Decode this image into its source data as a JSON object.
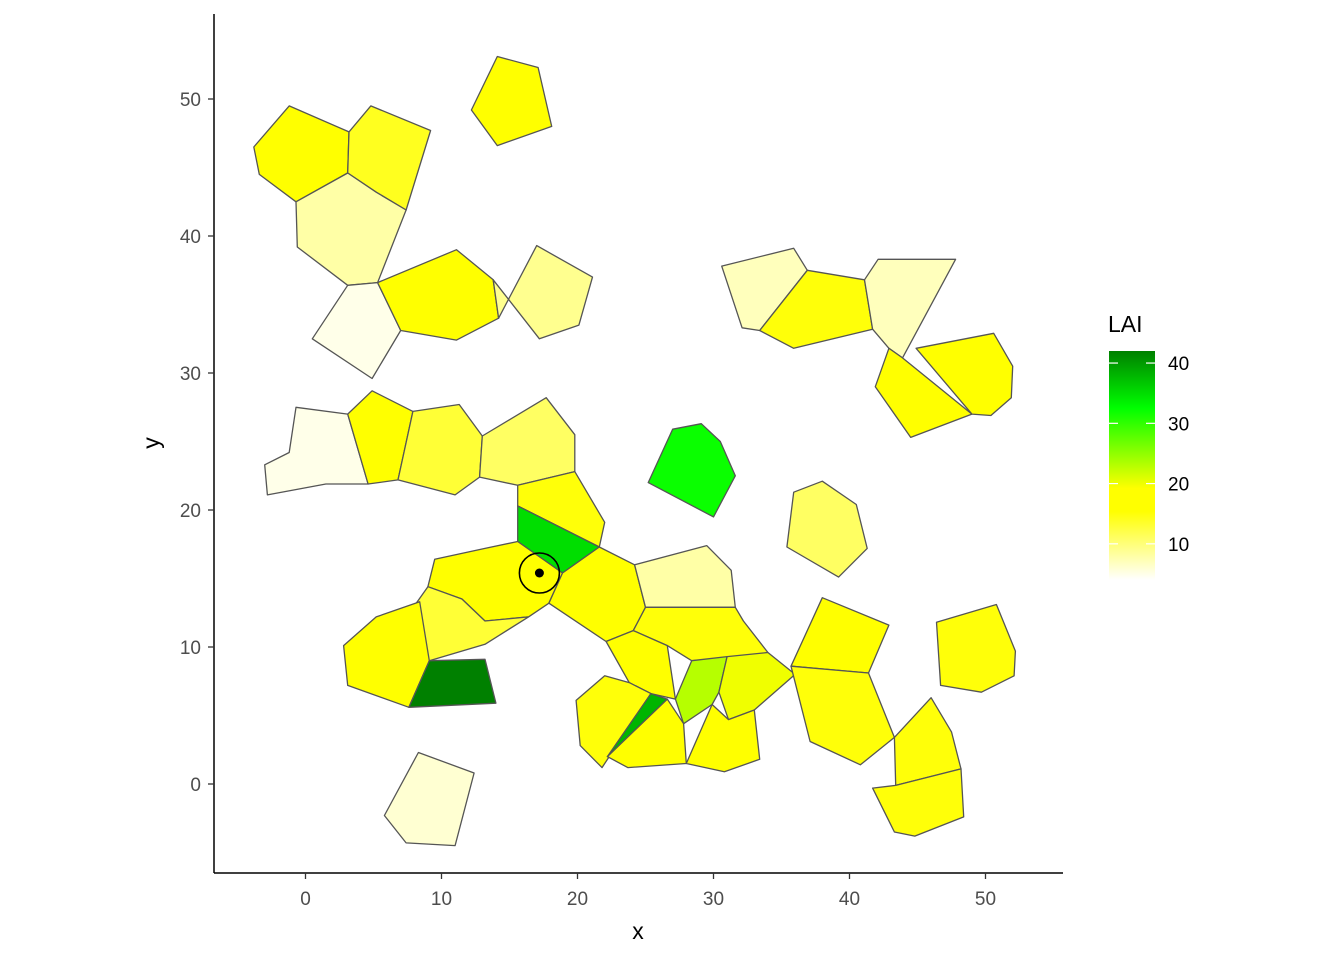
{
  "chart_data": {
    "type": "map",
    "xlabel": "x",
    "ylabel": "y",
    "xlim": [
      -6.5,
      55.7
    ],
    "ylim": [
      -6.5,
      56.7
    ],
    "x_ticks": [
      0,
      10,
      20,
      30,
      40,
      50
    ],
    "y_ticks": [
      0,
      10,
      20,
      30,
      40,
      50
    ],
    "grid": false,
    "legend": {
      "title": "LAI",
      "placement": "right",
      "ticks": [
        10,
        20,
        30,
        40
      ],
      "range": [
        4,
        42
      ],
      "colors": [
        "#ffffff",
        "#ffff00",
        "#00ff00",
        "#008000"
      ]
    },
    "polygon_edge_color": "#555555",
    "cells": [
      {
        "lai": 18,
        "pts": [
          [
            -3.8,
            46.5
          ],
          [
            -1.2,
            49.5
          ],
          [
            3.2,
            47.6
          ],
          [
            3.1,
            44.6
          ],
          [
            -0.7,
            42.5
          ],
          [
            -3.4,
            44.5
          ]
        ]
      },
      {
        "lai": 14,
        "pts": [
          [
            3.2,
            47.6
          ],
          [
            4.8,
            49.5
          ],
          [
            9.2,
            47.7
          ],
          [
            7.4,
            41.9
          ],
          [
            5.2,
            43.2
          ],
          [
            3.1,
            44.6
          ]
        ]
      },
      {
        "lai": 17,
        "pts": [
          [
            12.2,
            49.2
          ],
          [
            14.1,
            53.1
          ],
          [
            17.1,
            52.3
          ],
          [
            18.1,
            48.0
          ],
          [
            14.1,
            46.6
          ]
        ]
      },
      {
        "lai": 8,
        "pts": [
          [
            -0.7,
            42.5
          ],
          [
            3.1,
            44.6
          ],
          [
            5.2,
            43.2
          ],
          [
            7.4,
            41.9
          ],
          [
            5.3,
            36.6
          ],
          [
            3.1,
            36.4
          ],
          [
            -0.6,
            39.2
          ]
        ]
      },
      {
        "lai": 5,
        "pts": [
          [
            3.1,
            36.4
          ],
          [
            0.5,
            32.5
          ],
          [
            4.9,
            29.6
          ],
          [
            7.0,
            33.1
          ],
          [
            5.3,
            36.6
          ]
        ]
      },
      {
        "lai": 16,
        "pts": [
          [
            5.3,
            36.6
          ],
          [
            11.1,
            39.0
          ],
          [
            13.8,
            36.8
          ],
          [
            14.2,
            34.0
          ],
          [
            11.1,
            32.4
          ],
          [
            7.0,
            33.1
          ]
        ]
      },
      {
        "lai": 9,
        "pts": [
          [
            14.2,
            34.0
          ],
          [
            17.0,
            39.3
          ],
          [
            21.1,
            37.0
          ],
          [
            20.1,
            33.5
          ],
          [
            17.2,
            32.5
          ],
          [
            13.8,
            36.8
          ]
        ]
      },
      {
        "lai": 7,
        "pts": [
          [
            30.6,
            37.8
          ],
          [
            35.9,
            39.1
          ],
          [
            36.9,
            37.5
          ],
          [
            33.4,
            33.1
          ],
          [
            32.1,
            33.3
          ]
        ]
      },
      {
        "lai": 15,
        "pts": [
          [
            36.9,
            37.5
          ],
          [
            41.1,
            36.8
          ],
          [
            41.7,
            33.2
          ],
          [
            35.9,
            31.8
          ],
          [
            33.4,
            33.1
          ]
        ]
      },
      {
        "lai": 7,
        "pts": [
          [
            41.1,
            36.8
          ],
          [
            42.1,
            38.3
          ],
          [
            47.8,
            38.3
          ],
          [
            43.9,
            31.1
          ],
          [
            42.9,
            31.8
          ],
          [
            41.7,
            33.2
          ]
        ]
      },
      {
        "lai": 18,
        "pts": [
          [
            43.9,
            31.1
          ],
          [
            42.9,
            31.8
          ],
          [
            41.9,
            29.0
          ],
          [
            44.5,
            25.3
          ],
          [
            49.0,
            27.0
          ]
        ]
      },
      {
        "lai": 16,
        "pts": [
          [
            44.9,
            31.8
          ],
          [
            50.6,
            32.9
          ],
          [
            52.0,
            30.5
          ],
          [
            51.9,
            28.2
          ],
          [
            50.4,
            26.9
          ],
          [
            49.0,
            27.0
          ]
        ]
      },
      {
        "lai": 5,
        "pts": [
          [
            -1.2,
            24.2
          ],
          [
            -0.7,
            27.5
          ],
          [
            3.1,
            27.0
          ],
          [
            4.6,
            21.9
          ],
          [
            1.5,
            21.9
          ],
          [
            -2.8,
            21.1
          ],
          [
            -3.0,
            23.3
          ]
        ]
      },
      {
        "lai": 16,
        "pts": [
          [
            3.1,
            27.0
          ],
          [
            4.9,
            28.7
          ],
          [
            7.9,
            27.2
          ],
          [
            6.8,
            22.2
          ],
          [
            4.6,
            21.9
          ]
        ]
      },
      {
        "lai": 13,
        "pts": [
          [
            7.9,
            27.2
          ],
          [
            11.3,
            27.7
          ],
          [
            13.0,
            25.4
          ],
          [
            12.8,
            22.4
          ],
          [
            11.0,
            21.1
          ],
          [
            6.8,
            22.2
          ]
        ]
      },
      {
        "lai": 11,
        "pts": [
          [
            13.0,
            25.4
          ],
          [
            17.7,
            28.2
          ],
          [
            19.8,
            25.5
          ],
          [
            19.8,
            22.8
          ],
          [
            15.6,
            21.8
          ],
          [
            12.8,
            22.4
          ]
        ]
      },
      {
        "lai": 15,
        "pts": [
          [
            15.6,
            21.8
          ],
          [
            19.8,
            22.8
          ],
          [
            22.0,
            19.1
          ],
          [
            21.6,
            17.3
          ],
          [
            15.6,
            20.3
          ]
        ]
      },
      {
        "lai": 35,
        "pts": [
          [
            15.6,
            20.3
          ],
          [
            21.6,
            17.3
          ],
          [
            18.9,
            15.4
          ],
          [
            15.6,
            17.7
          ]
        ]
      },
      {
        "lai": 32,
        "pts": [
          [
            25.2,
            22.0
          ],
          [
            27.0,
            25.9
          ],
          [
            29.1,
            26.3
          ],
          [
            30.5,
            25.0
          ],
          [
            31.6,
            22.5
          ],
          [
            30.0,
            19.5
          ]
        ]
      },
      {
        "lai": 11,
        "pts": [
          [
            35.9,
            21.3
          ],
          [
            38.0,
            22.1
          ],
          [
            40.5,
            20.4
          ],
          [
            41.3,
            17.2
          ],
          [
            39.2,
            15.1
          ],
          [
            35.4,
            17.3
          ]
        ]
      },
      {
        "lai": 16,
        "pts": [
          [
            9.5,
            16.4
          ],
          [
            13.2,
            17.2
          ],
          [
            15.6,
            17.7
          ],
          [
            18.9,
            15.4
          ],
          [
            17.9,
            13.2
          ],
          [
            16.4,
            12.2
          ],
          [
            13.2,
            11.9
          ],
          [
            11.5,
            13.5
          ],
          [
            9.0,
            14.4
          ]
        ]
      },
      {
        "lai": 16,
        "pts": [
          [
            18.9,
            15.4
          ],
          [
            21.6,
            17.3
          ],
          [
            24.2,
            16.0
          ],
          [
            25.0,
            12.9
          ],
          [
            24.1,
            11.2
          ],
          [
            22.1,
            10.4
          ],
          [
            17.9,
            13.2
          ]
        ]
      },
      {
        "lai": 13,
        "pts": [
          [
            9.0,
            14.4
          ],
          [
            11.5,
            13.5
          ],
          [
            13.2,
            11.9
          ],
          [
            16.4,
            12.2
          ],
          [
            13.2,
            10.2
          ],
          [
            9.1,
            9.0
          ],
          [
            6.0,
            10.2
          ]
        ]
      },
      {
        "lai": 8,
        "pts": [
          [
            24.2,
            16.0
          ],
          [
            29.5,
            17.4
          ],
          [
            31.3,
            15.6
          ],
          [
            31.6,
            12.9
          ],
          [
            25.0,
            12.9
          ]
        ]
      },
      {
        "lai": 15,
        "pts": [
          [
            25.0,
            12.9
          ],
          [
            31.6,
            12.9
          ],
          [
            32.2,
            11.9
          ],
          [
            34.0,
            9.6
          ],
          [
            32.0,
            9.2
          ],
          [
            28.4,
            9.0
          ],
          [
            26.6,
            10.1
          ],
          [
            24.1,
            11.2
          ]
        ]
      },
      {
        "lai": 18,
        "pts": [
          [
            5.2,
            12.2
          ],
          [
            8.4,
            13.3
          ],
          [
            9.1,
            9.0
          ],
          [
            7.6,
            5.6
          ],
          [
            3.1,
            7.2
          ],
          [
            2.8,
            10.1
          ]
        ]
      },
      {
        "lai": 42,
        "pts": [
          [
            9.1,
            9.0
          ],
          [
            13.2,
            9.1
          ],
          [
            14.0,
            5.9
          ],
          [
            7.6,
            5.6
          ]
        ]
      },
      {
        "lai": 16,
        "pts": [
          [
            22.1,
            10.4
          ],
          [
            24.1,
            11.2
          ],
          [
            26.6,
            10.1
          ],
          [
            27.2,
            6.2
          ],
          [
            25.4,
            6.6
          ],
          [
            23.8,
            7.4
          ]
        ]
      },
      {
        "lai": 23,
        "pts": [
          [
            27.2,
            6.2
          ],
          [
            28.4,
            9.0
          ],
          [
            31.0,
            9.3
          ],
          [
            30.4,
            6.7
          ],
          [
            29.9,
            5.8
          ],
          [
            27.8,
            4.4
          ]
        ]
      },
      {
        "lai": 20,
        "pts": [
          [
            31.0,
            9.3
          ],
          [
            34.0,
            9.6
          ],
          [
            36.0,
            8.0
          ],
          [
            33.0,
            5.4
          ],
          [
            31.1,
            4.7
          ],
          [
            30.4,
            6.7
          ]
        ]
      },
      {
        "lai": 18,
        "pts": [
          [
            38.0,
            13.6
          ],
          [
            42.9,
            11.6
          ],
          [
            41.4,
            8.1
          ],
          [
            35.7,
            8.6
          ]
        ]
      },
      {
        "lai": 15,
        "pts": [
          [
            35.7,
            8.6
          ],
          [
            41.4,
            8.1
          ],
          [
            43.3,
            3.4
          ],
          [
            40.8,
            1.4
          ],
          [
            37.1,
            3.1
          ]
        ]
      },
      {
        "lai": 15,
        "pts": [
          [
            19.9,
            6.1
          ],
          [
            22.0,
            7.9
          ],
          [
            23.8,
            7.4
          ],
          [
            25.4,
            6.6
          ],
          [
            21.8,
            1.2
          ],
          [
            20.2,
            2.8
          ]
        ]
      },
      {
        "lai": 38,
        "pts": [
          [
            25.4,
            6.6
          ],
          [
            26.6,
            6.2
          ],
          [
            22.2,
            2.0
          ]
        ]
      },
      {
        "lai": 16,
        "pts": [
          [
            22.2,
            2.0
          ],
          [
            26.6,
            6.2
          ],
          [
            27.8,
            4.4
          ],
          [
            28.0,
            1.5
          ],
          [
            23.7,
            1.2
          ]
        ]
      },
      {
        "lai": 16,
        "pts": [
          [
            28.0,
            1.5
          ],
          [
            29.9,
            5.8
          ],
          [
            31.1,
            4.7
          ],
          [
            33.0,
            5.4
          ],
          [
            33.4,
            1.8
          ],
          [
            30.8,
            0.9
          ]
        ]
      },
      {
        "lai": 15,
        "pts": [
          [
            43.3,
            3.4
          ],
          [
            46.0,
            6.3
          ],
          [
            47.5,
            3.8
          ],
          [
            48.2,
            1.1
          ],
          [
            43.4,
            -0.1
          ]
        ]
      },
      {
        "lai": 15,
        "pts": [
          [
            43.4,
            -0.1
          ],
          [
            41.7,
            -0.3
          ],
          [
            43.3,
            -3.5
          ],
          [
            44.8,
            -3.8
          ],
          [
            48.4,
            -2.4
          ],
          [
            48.2,
            1.1
          ]
        ]
      },
      {
        "lai": 15,
        "pts": [
          [
            46.4,
            11.8
          ],
          [
            50.8,
            13.1
          ],
          [
            52.2,
            9.7
          ],
          [
            52.1,
            7.9
          ],
          [
            49.7,
            6.7
          ],
          [
            46.7,
            7.2
          ]
        ]
      },
      {
        "lai": 6,
        "pts": [
          [
            8.3,
            2.3
          ],
          [
            12.4,
            0.8
          ],
          [
            11.0,
            -4.5
          ],
          [
            7.4,
            -4.3
          ],
          [
            5.8,
            -2.3
          ]
        ]
      }
    ],
    "highlight_point": {
      "x": 17.2,
      "y": 15.4,
      "ring": true
    }
  }
}
